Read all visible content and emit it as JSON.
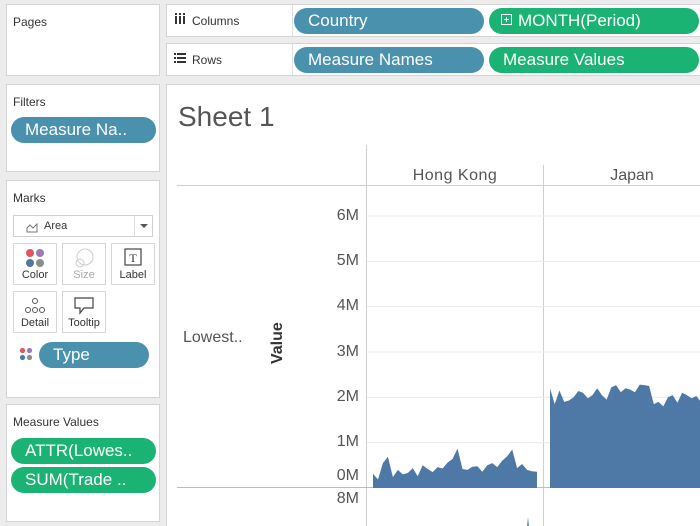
{
  "pages": {
    "title": "Pages"
  },
  "filters": {
    "title": "Filters",
    "pills": [
      "Measure Na.."
    ]
  },
  "marks": {
    "title": "Marks",
    "type_label": "Area",
    "buttons": {
      "color": "Color",
      "size": "Size",
      "label": "Label",
      "detail": "Detail",
      "tooltip": "Tooltip"
    },
    "field_pill": "Type"
  },
  "measure_values": {
    "title": "Measure Values",
    "pills": [
      "ATTR(Lowes..",
      "SUM(Trade .."
    ]
  },
  "columns": {
    "label": "Columns",
    "pills": [
      "Country",
      "MONTH(Period)"
    ]
  },
  "rows": {
    "label": "Rows",
    "pills": [
      "Measure Names",
      "Measure Values"
    ]
  },
  "sheet": {
    "title": "Sheet 1"
  },
  "row_header": "Lowest..",
  "axis_title": "Value",
  "y_ticks": [
    "6M",
    "5M",
    "4M",
    "3M",
    "2M",
    "1M",
    "0M"
  ],
  "next_pane_tick": "8M",
  "colors": {
    "blue_pill": "#4a91ad",
    "green_pill": "#1ab373",
    "area": "#4e79a7"
  },
  "chart_data": {
    "type": "area",
    "ylabel": "Value",
    "ylim": [
      0,
      6000000
    ],
    "y_ticks": [
      0,
      1000000,
      2000000,
      3000000,
      4000000,
      5000000,
      6000000
    ],
    "series": [
      {
        "name": "Hong Kong",
        "values": [
          310000,
          190000,
          550000,
          690000,
          240000,
          400000,
          300000,
          330000,
          440000,
          260000,
          500000,
          420000,
          350000,
          460000,
          430000,
          560000,
          640000,
          870000,
          420000,
          400000,
          470000,
          480000,
          360000,
          500000,
          550000,
          460000,
          600000,
          700000,
          850000,
          440000,
          530000,
          400000,
          370000,
          360000
        ]
      },
      {
        "name": "Japan",
        "values": [
          2200000,
          1850000,
          2150000,
          1900000,
          1930000,
          2000000,
          2140000,
          2100000,
          1980000,
          2050000,
          2200000,
          2050000,
          1950000,
          2220000,
          2270000,
          2110000,
          2200000,
          2170000,
          2110000,
          2280000,
          2270000,
          2250000,
          1850000,
          1900000,
          1800000,
          2000000,
          2050000,
          1880000,
          2100000,
          2050000,
          1980000,
          2030000,
          1900000
        ]
      }
    ]
  }
}
